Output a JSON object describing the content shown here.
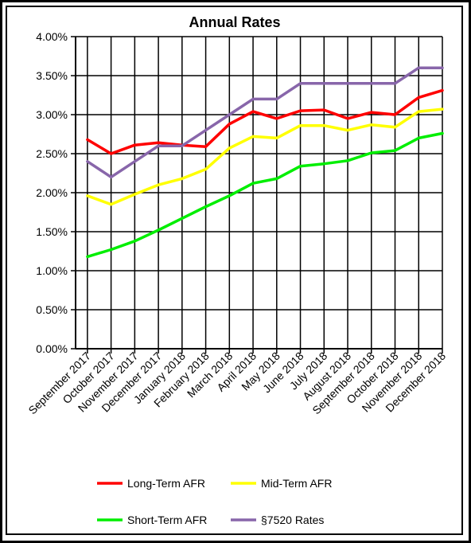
{
  "chart_data": {
    "type": "line",
    "title": "Annual Rates",
    "xlabel": "",
    "ylabel": "",
    "ylim": [
      0,
      0.04
    ],
    "yticks": [
      "0.00%",
      "0.50%",
      "1.00%",
      "1.50%",
      "2.00%",
      "2.50%",
      "3.00%",
      "3.50%",
      "4.00%"
    ],
    "grid": "vertical lines at each category, horizontal lines at each tick",
    "legend_position": "bottom",
    "categories": [
      "September 2017",
      "October 2017",
      "November 2017",
      "December 2017",
      "January 2018",
      "February 2018",
      "March 2018",
      "April 2018",
      "May 2018",
      "June 2018",
      "July 2018",
      "August 2018",
      "September 2018",
      "October 2018",
      "November 2018",
      "December 2018"
    ],
    "series": [
      {
        "name": "Long-Term AFR",
        "color": "#ff0000",
        "values": [
          0.0268,
          0.025,
          0.0261,
          0.0264,
          0.0261,
          0.0259,
          0.0288,
          0.0304,
          0.0295,
          0.0305,
          0.0306,
          0.0295,
          0.0303,
          0.03,
          0.0322,
          0.0331
        ]
      },
      {
        "name": "Mid-Term AFR",
        "color": "#ffff00",
        "values": [
          0.0196,
          0.0185,
          0.0198,
          0.021,
          0.0218,
          0.023,
          0.0257,
          0.0272,
          0.027,
          0.0286,
          0.0286,
          0.028,
          0.0287,
          0.0284,
          0.0304,
          0.0307
        ]
      },
      {
        "name": "Short-Term AFR",
        "color": "#00ee00",
        "values": [
          0.0118,
          0.0127,
          0.0138,
          0.0152,
          0.0167,
          0.0182,
          0.0196,
          0.0212,
          0.0218,
          0.0234,
          0.0237,
          0.0241,
          0.0251,
          0.0254,
          0.027,
          0.0276
        ]
      },
      {
        "name": "§7520 Rates",
        "color": "#8866aa",
        "values": [
          0.024,
          0.022,
          0.024,
          0.026,
          0.026,
          0.028,
          0.03,
          0.032,
          0.032,
          0.034,
          0.034,
          0.034,
          0.034,
          0.034,
          0.036,
          0.036
        ]
      }
    ]
  }
}
